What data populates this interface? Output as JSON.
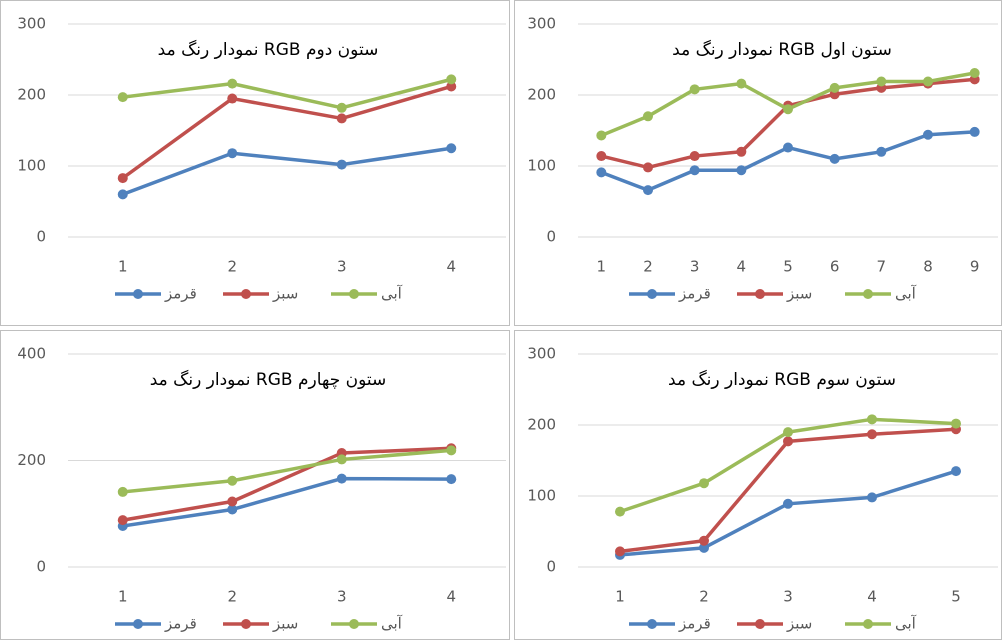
{
  "chart_data": [
    {
      "type": "line",
      "title": "نمودار رنگ مد RGB ستون دوم",
      "categories": [
        "1",
        "2",
        "3",
        "4"
      ],
      "series": [
        {
          "name": "قرمز",
          "color": "#4f81bd",
          "values": [
            60,
            118,
            102,
            125
          ]
        },
        {
          "name": "سبز",
          "color": "#c0504d",
          "values": [
            83,
            195,
            167,
            212
          ]
        },
        {
          "name": "آبی",
          "color": "#9bbb59",
          "values": [
            197,
            216,
            182,
            222
          ]
        }
      ],
      "ylim": [
        0,
        300
      ],
      "yticks": [
        0,
        100,
        200,
        300
      ],
      "grid": true,
      "legend": "bottom"
    },
    {
      "type": "line",
      "title": "نمودار رنگ مد RGB ستون اول",
      "categories": [
        "1",
        "2",
        "3",
        "4",
        "5",
        "6",
        "7",
        "8",
        "9"
      ],
      "series": [
        {
          "name": "قرمز",
          "color": "#4f81bd",
          "values": [
            91,
            66,
            94,
            94,
            126,
            110,
            120,
            144,
            148
          ]
        },
        {
          "name": "سبز",
          "color": "#c0504d",
          "values": [
            114,
            98,
            114,
            120,
            185,
            201,
            210,
            216,
            222
          ]
        },
        {
          "name": "آبی",
          "color": "#9bbb59",
          "values": [
            143,
            170,
            208,
            216,
            180,
            210,
            219,
            219,
            231
          ]
        }
      ],
      "ylim": [
        0,
        300
      ],
      "yticks": [
        0,
        100,
        200,
        300
      ],
      "grid": true,
      "legend": "bottom"
    },
    {
      "type": "line",
      "title": "نمودار رنگ مد RGB ستون چهارم",
      "categories": [
        "1",
        "2",
        "3",
        "4"
      ],
      "series": [
        {
          "name": "قرمز",
          "color": "#4f81bd",
          "values": [
            77,
            108,
            166,
            165
          ]
        },
        {
          "name": "سبز",
          "color": "#c0504d",
          "values": [
            88,
            123,
            214,
            223
          ]
        },
        {
          "name": "آبی",
          "color": "#9bbb59",
          "values": [
            141,
            162,
            202,
            219
          ]
        }
      ],
      "ylim": [
        0,
        400
      ],
      "yticks": [
        0,
        200,
        400
      ],
      "grid": true,
      "legend": "bottom"
    },
    {
      "type": "line",
      "title": "نمودار رنگ مد RGB ستون سوم",
      "categories": [
        "1",
        "2",
        "3",
        "4",
        "5"
      ],
      "series": [
        {
          "name": "قرمز",
          "color": "#4f81bd",
          "values": [
            17,
            27,
            89,
            98,
            135
          ]
        },
        {
          "name": "سبز",
          "color": "#c0504d",
          "values": [
            22,
            37,
            177,
            187,
            194
          ]
        },
        {
          "name": "آبی",
          "color": "#9bbb59",
          "values": [
            78,
            118,
            190,
            208,
            202
          ]
        }
      ],
      "ylim": [
        0,
        300
      ],
      "yticks": [
        0,
        100,
        200,
        300
      ],
      "grid": true,
      "legend": "bottom"
    }
  ]
}
